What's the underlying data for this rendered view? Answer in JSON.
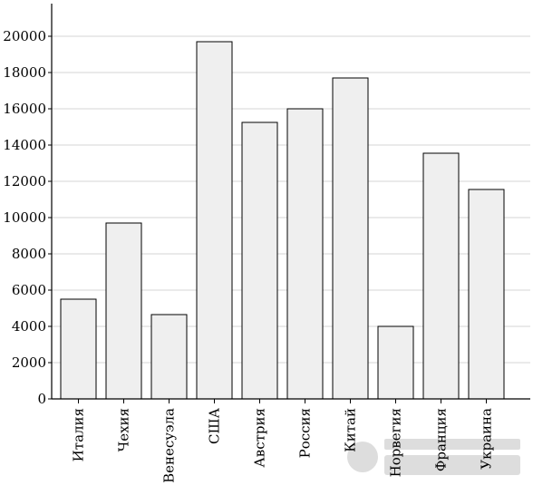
{
  "chart_data": {
    "type": "bar",
    "title": "",
    "xlabel": "",
    "ylabel": "",
    "categories": [
      "Италия",
      "Чехия",
      "Венесуэла",
      "США",
      "Австрия",
      "Россия",
      "Китай",
      "Норвегия",
      "Франция",
      "Украина"
    ],
    "values": [
      5500,
      9700,
      4650,
      19700,
      15250,
      16000,
      17700,
      4000,
      13550,
      11550
    ],
    "ylim": [
      0,
      21800
    ],
    "yticks": [
      0,
      2000,
      4000,
      6000,
      8000,
      10000,
      12000,
      14000,
      16000,
      18000,
      20000
    ],
    "grid": true,
    "colors": {
      "bar_fill": "#efefef",
      "bar_stroke": "#000000",
      "grid": "#c8c8c8",
      "axis": "#000000"
    }
  }
}
